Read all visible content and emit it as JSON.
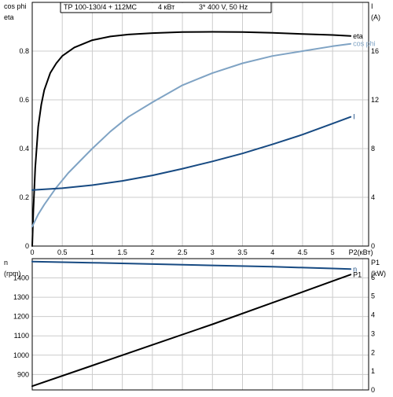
{
  "header": {
    "pump": "TP 100-130/4 + 112MC",
    "power": "4 кВт",
    "supply": "3* 400 V, 50 Hz"
  },
  "colors": {
    "eta": "#000000",
    "cos_phi": "#7fa3c4",
    "current": "#174a82",
    "speed": "#174a82",
    "p1": "#000000",
    "grid": "#cccccc",
    "frame": "#000000"
  },
  "chart_data": [
    {
      "type": "line",
      "title": "TP 100-130/4 + 112MC   4 кВт   3* 400 V, 50 Hz",
      "xlabel": "P2(кВт)",
      "xlim": [
        0,
        5.6
      ],
      "x_ticks": [
        0,
        0.5,
        1,
        1.5,
        2,
        2.5,
        3,
        3.5,
        4,
        4.5,
        5
      ],
      "x_tick_labels": [
        "0",
        "0.5",
        "1",
        "1.5",
        "2",
        "2.5",
        "3",
        "3.5",
        "4",
        "4.5",
        "5"
      ],
      "left_axis": {
        "labels": [
          "cos phi",
          "eta"
        ],
        "ylim": [
          0,
          1
        ],
        "ticks": [
          0,
          0.2,
          0.4,
          0.6,
          0.8
        ],
        "tick_labels": [
          "0",
          "0.2",
          "0.4",
          "0.6",
          "0.8"
        ]
      },
      "right_axis": {
        "labels": [
          "I",
          "(A)"
        ],
        "ylim": [
          0,
          20
        ],
        "ticks": [
          0,
          4,
          8,
          12,
          16
        ],
        "tick_labels": [
          "0",
          "4",
          "8",
          "12",
          "16"
        ]
      },
      "grid": true,
      "series": [
        {
          "name": "eta",
          "axis": "left",
          "color": "#000000",
          "x": [
            0,
            0.02,
            0.05,
            0.1,
            0.15,
            0.2,
            0.3,
            0.4,
            0.5,
            0.7,
            1.0,
            1.3,
            1.6,
            2.0,
            2.5,
            3.0,
            3.5,
            4.0,
            4.5,
            5.0,
            5.3
          ],
          "y": [
            0,
            0.15,
            0.32,
            0.49,
            0.58,
            0.64,
            0.71,
            0.75,
            0.78,
            0.815,
            0.845,
            0.86,
            0.868,
            0.874,
            0.878,
            0.879,
            0.878,
            0.875,
            0.87,
            0.866,
            0.862
          ]
        },
        {
          "name": "cos phi",
          "axis": "left",
          "color": "#7fa3c4",
          "x": [
            0,
            0.1,
            0.2,
            0.4,
            0.6,
            0.8,
            1.0,
            1.3,
            1.6,
            2.0,
            2.5,
            3.0,
            3.5,
            4.0,
            4.5,
            5.0,
            5.3
          ],
          "y": [
            0.08,
            0.13,
            0.17,
            0.24,
            0.3,
            0.35,
            0.4,
            0.47,
            0.53,
            0.59,
            0.66,
            0.71,
            0.75,
            0.78,
            0.8,
            0.82,
            0.83
          ]
        },
        {
          "name": "I",
          "axis": "right",
          "color": "#174a82",
          "x": [
            0,
            0.5,
            1.0,
            1.5,
            2.0,
            2.5,
            3.0,
            3.5,
            4.0,
            4.5,
            5.0,
            5.3
          ],
          "y": [
            4.6,
            4.75,
            5.0,
            5.35,
            5.8,
            6.35,
            6.95,
            7.6,
            8.35,
            9.15,
            10.05,
            10.6
          ]
        }
      ]
    },
    {
      "type": "line",
      "xlim": [
        0,
        5.6
      ],
      "left_axis": {
        "labels": [
          "n",
          "(rpm)"
        ],
        "ylim": [
          820,
          1500
        ],
        "ticks": [
          900,
          1000,
          1100,
          1200,
          1300,
          1400
        ],
        "tick_labels": [
          "900",
          "1000",
          "1100",
          "1200",
          "1300",
          "1400"
        ]
      },
      "right_axis": {
        "labels": [
          "P1",
          "(kW)"
        ],
        "ylim": [
          0,
          7
        ],
        "ticks": [
          0,
          1,
          2,
          3,
          4,
          5,
          6
        ],
        "tick_labels": [
          "0",
          "1",
          "2",
          "3",
          "4",
          "5",
          "6"
        ]
      },
      "grid": true,
      "series": [
        {
          "name": "n",
          "axis": "left",
          "color": "#174a82",
          "x": [
            0,
            1,
            2,
            3,
            4,
            5,
            5.3
          ],
          "y": [
            1485,
            1479,
            1472,
            1465,
            1458,
            1449,
            1446
          ]
        },
        {
          "name": "P1",
          "axis": "right",
          "color": "#000000",
          "x": [
            0,
            1,
            2,
            3,
            4,
            5,
            5.3
          ],
          "y": [
            0.2,
            1.3,
            2.4,
            3.5,
            4.65,
            5.8,
            6.15
          ]
        }
      ]
    }
  ]
}
